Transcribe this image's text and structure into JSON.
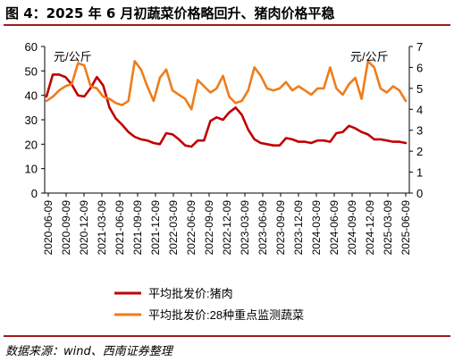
{
  "title": "图 4：2025 年 6 月初蔬菜价格略回升、猪肉价格平稳",
  "source": "数据来源：wind、西南证券整理",
  "chart_data": {
    "type": "line",
    "y_left_label": "元/公斤",
    "y_right_label": "元/公斤",
    "y_left_ticks": [
      "0",
      "10",
      "20",
      "30",
      "40",
      "50",
      "60"
    ],
    "y_right_ticks": [
      "0",
      "1",
      "2",
      "3",
      "4",
      "5",
      "6",
      "7"
    ],
    "ylim_left": [
      0,
      60
    ],
    "ylim_right": [
      0,
      7
    ],
    "x_ticks": [
      "2020-06-09",
      "2020-09-09",
      "2020-12-09",
      "2021-03-09",
      "2021-06-09",
      "2021-09-09",
      "2021-12-09",
      "2022-03-09",
      "2022-06-09",
      "2022-09-09",
      "2022-12-09",
      "2023-03-09",
      "2023-06-09",
      "2023-09-09",
      "2023-12-09",
      "2024-03-09",
      "2024-06-09",
      "2024-09-09",
      "2024-12-09",
      "2025-03-09",
      "2025-06-09"
    ],
    "grid": false,
    "legend_position": "bottom",
    "series": [
      {
        "name": "平均批发价:猪肉",
        "axis": "left",
        "color": "#c00000",
        "values": [
          39.5,
          48.5,
          48.5,
          47.5,
          44.5,
          40.0,
          39.5,
          43.0,
          47.5,
          44.0,
          35.0,
          30.5,
          28.0,
          25.0,
          23.0,
          22.0,
          21.5,
          20.5,
          20.0,
          24.5,
          24.0,
          22.0,
          19.5,
          19.0,
          21.5,
          21.5,
          29.5,
          31.0,
          30.0,
          33.0,
          35.0,
          32.0,
          26.0,
          22.0,
          20.5,
          20.0,
          19.5,
          19.5,
          22.5,
          22.0,
          21.0,
          21.0,
          20.5,
          21.5,
          21.5,
          21.0,
          24.5,
          25.0,
          27.5,
          26.5,
          25.0,
          24.0,
          22.0,
          22.0,
          21.5,
          21.0,
          21.0,
          20.5
        ]
      },
      {
        "name": "平均批发价:28种重点监测蔬菜",
        "axis": "right",
        "color": "#ee7d1b",
        "values": [
          4.4,
          4.6,
          4.9,
          5.1,
          5.2,
          6.2,
          6.1,
          5.1,
          5.0,
          4.6,
          4.5,
          4.3,
          4.2,
          4.4,
          6.3,
          5.9,
          5.1,
          4.4,
          5.5,
          5.9,
          4.9,
          4.7,
          4.5,
          4.0,
          5.4,
          5.1,
          4.8,
          5.0,
          5.6,
          4.6,
          4.3,
          4.4,
          4.9,
          6.0,
          5.6,
          5.0,
          4.9,
          5.0,
          5.3,
          4.9,
          5.1,
          4.9,
          4.7,
          5.0,
          5.0,
          6.0,
          5.0,
          4.7,
          5.2,
          5.5,
          4.5,
          6.3,
          6.0,
          5.0,
          4.8,
          5.1,
          4.9,
          4.4
        ]
      }
    ]
  }
}
